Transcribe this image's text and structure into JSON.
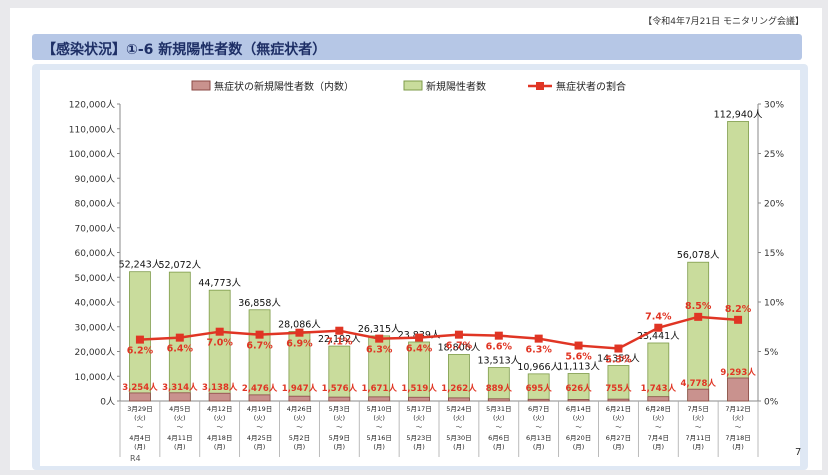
{
  "meeting_label": "【令和4年7月21日 モニタリング会議】",
  "header_title": "【感染状況】①-6 新規陽性者数（無症状者）",
  "page_number": "7",
  "colors": {
    "header_bg": "#b6c7e6",
    "header_text": "#1e2f66",
    "bar_total": "#c9dc9c",
    "bar_total_border": "#7e9b4a",
    "bar_asym": "#c9928e",
    "bar_asym_border": "#8b4a46",
    "line": "#e03524",
    "label_red": "#e03524"
  },
  "chart_data": {
    "type": "bar",
    "legend": {
      "position": "top",
      "asymptomatic": "無症状の新規陽性者数（内数）",
      "total": "新規陽性者数",
      "ratio": "無症状者の割合"
    },
    "y_left": {
      "min": 0,
      "max": 120000,
      "step": 10000,
      "unit": "人",
      "ticks": [
        "0人",
        "10,000人",
        "20,000人",
        "30,000人",
        "40,000人",
        "50,000人",
        "60,000人",
        "70,000人",
        "80,000人",
        "90,000人",
        "100,000人",
        "110,000人",
        "120,000人"
      ]
    },
    "y_right": {
      "min": 0,
      "max": 30,
      "step": 5,
      "ticks": [
        "0%",
        "5%",
        "10%",
        "15%",
        "20%",
        "25%",
        "30%"
      ]
    },
    "categories": [
      {
        "start": "3月29日",
        "start_day": "(火)",
        "end": "4月4日",
        "end_day": "(月)"
      },
      {
        "start": "4月5日",
        "start_day": "(火)",
        "end": "4月11日",
        "end_day": "(月)"
      },
      {
        "start": "4月12日",
        "start_day": "(火)",
        "end": "4月18日",
        "end_day": "(月)"
      },
      {
        "start": "4月19日",
        "start_day": "(火)",
        "end": "4月25日",
        "end_day": "(月)"
      },
      {
        "start": "4月26日",
        "start_day": "(火)",
        "end": "5月2日",
        "end_day": "(月)"
      },
      {
        "start": "5月3日",
        "start_day": "(火)",
        "end": "5月9日",
        "end_day": "(月)"
      },
      {
        "start": "5月10日",
        "start_day": "(火)",
        "end": "5月16日",
        "end_day": "(月)"
      },
      {
        "start": "5月17日",
        "start_day": "(火)",
        "end": "5月23日",
        "end_day": "(月)"
      },
      {
        "start": "5月24日",
        "start_day": "(火)",
        "end": "5月30日",
        "end_day": "(月)"
      },
      {
        "start": "5月31日",
        "start_day": "(火)",
        "end": "6月6日",
        "end_day": "(月)"
      },
      {
        "start": "6月7日",
        "start_day": "(火)",
        "end": "6月13日",
        "end_day": "(月)"
      },
      {
        "start": "6月14日",
        "start_day": "(火)",
        "end": "6月20日",
        "end_day": "(月)"
      },
      {
        "start": "6月21日",
        "start_day": "(火)",
        "end": "6月27日",
        "end_day": "(月)"
      },
      {
        "start": "6月28日",
        "start_day": "(火)",
        "end": "7月4日",
        "end_day": "(月)"
      },
      {
        "start": "7月5日",
        "start_day": "(火)",
        "end": "7月11日",
        "end_day": "(月)"
      },
      {
        "start": "7月12日",
        "start_day": "(火)",
        "end": "7月18日",
        "end_day": "(月)"
      }
    ],
    "year_note": "R4",
    "tilde": "～",
    "series": [
      {
        "name": "新規陽性者数",
        "kind": "bar",
        "axis": "left",
        "values": [
          52243,
          52072,
          44773,
          36858,
          28086,
          22192,
          26315,
          23839,
          18806,
          13513,
          10966,
          11113,
          14352,
          23441,
          56078,
          112940
        ],
        "labels": [
          "52,243人",
          "52,072人",
          "44,773人",
          "36,858人",
          "28,086人",
          "22,192人",
          "26,315人",
          "23,839人",
          "18,806人",
          "13,513人",
          "10,966人",
          "11,113人",
          "14,352人",
          "23,441人",
          "56,078人",
          "112,940人"
        ]
      },
      {
        "name": "無症状の新規陽性者数（内数）",
        "kind": "bar",
        "axis": "left",
        "values": [
          3254,
          3314,
          3138,
          2476,
          1947,
          1576,
          1671,
          1519,
          1262,
          889,
          695,
          626,
          755,
          1743,
          4778,
          9293
        ],
        "labels": [
          "3,254人",
          "3,314人",
          "3,138人",
          "2,476人",
          "1,947人",
          "1,576人",
          "1,671人",
          "1,519人",
          "1,262人",
          "889人",
          "695人",
          "626人",
          "755人",
          "1,743人",
          "4,778人",
          "9,293人"
        ]
      },
      {
        "name": "無症状者の割合",
        "kind": "line",
        "axis": "right",
        "values": [
          6.2,
          6.4,
          7.0,
          6.7,
          6.9,
          7.1,
          6.3,
          6.4,
          6.7,
          6.6,
          6.3,
          5.6,
          5.3,
          7.4,
          8.5,
          8.2
        ],
        "labels": [
          "6.2%",
          "6.4%",
          "7.0%",
          "6.7%",
          "6.9%",
          "7.1%",
          "6.3%",
          "6.4%",
          "6.7%",
          "6.6%",
          "6.3%",
          "5.6%",
          "5.3%",
          "7.4%",
          "8.5%",
          "8.2%"
        ]
      }
    ]
  }
}
